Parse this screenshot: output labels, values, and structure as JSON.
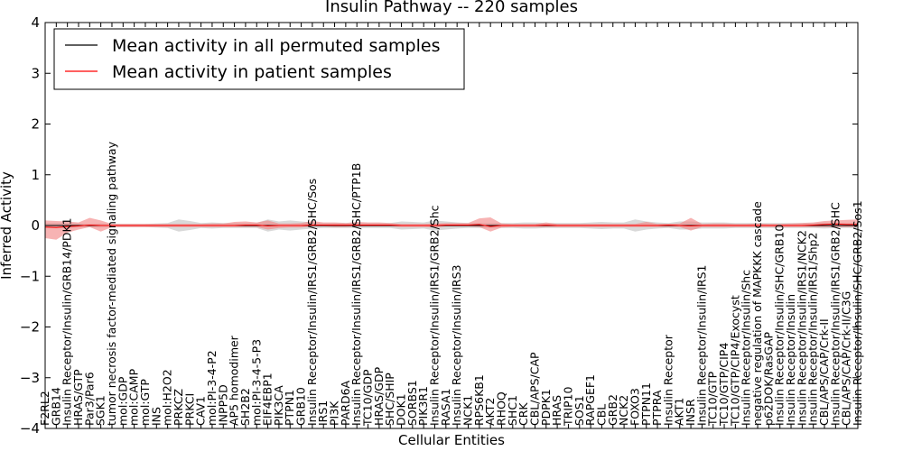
{
  "chart_data": {
    "type": "line",
    "title": "Insulin Pathway -- 220 samples",
    "xlabel": "Cellular Entities",
    "ylabel": "Inferred Activity",
    "ylim": [
      -4,
      4
    ],
    "yticks": [
      "4",
      "3",
      "2",
      "1",
      "0",
      "−1",
      "−2",
      "−3",
      "−4"
    ],
    "ytick_values": [
      4,
      3,
      2,
      1,
      0,
      -1,
      -2,
      -3,
      -4
    ],
    "grid": false,
    "legend_position": "top-left",
    "categories": [
      "F2RL2",
      "GRB14",
      "Insulin Receptor/Insulin/GRB14/PDK1",
      "HRAS/GTP",
      "Par3/Par6",
      "SGK1",
      "tumor necrosis factor-mediated signaling pathway",
      "mol:GDP",
      "mol:CAMP",
      "mol:GTP",
      "INS",
      "mol:H2O2",
      "PRKCZ",
      "PRKCI",
      "CAV1",
      "mol:PI-3-4-P2",
      "INPP5D",
      "AP5 homodimer",
      "SH2B2",
      "mol:PI-3-4-5-P3",
      "EIF4EBP1",
      "PIK3CA",
      "PTPN1",
      "GRB10",
      "Insulin Receptor/Insulin/IRS1/GRB2/SHC/Sos",
      "IRS1",
      "PI3K",
      "PARD6A",
      "Insulin Receptor/Insulin/IRS1/GRB2/SHC/PTP1B",
      "TC10/GDP",
      "HRAS/GDP",
      "SHC/SHIP",
      "DOK1",
      "SORBS1",
      "PIK3R1",
      "Insulin Receptor/Insulin/IRS1/GRB2/Shc",
      "RASA1",
      "Insulin Receptor/Insulin/IRS3",
      "NCK1",
      "RPS6KB1",
      "AKT2",
      "RHOQ",
      "SHC1",
      "CRK",
      "CBL/APS/CAP",
      "PDPK1",
      "HRAS",
      "TRIP10",
      "SOS1",
      "RAPGEF1",
      "CBL",
      "GRB2",
      "NCK2",
      "FOXO3",
      "PTPN11",
      "PTPRA",
      "Insulin Receptor",
      "AKT1",
      "INSR",
      "Insulin Receptor/Insulin/IRS1",
      "TC10/GTP",
      "TC10/GTP/CIP4",
      "TC10/GTP/CIP4/Exocyst",
      "Insulin Receptor/Insulin/Shc",
      "negative regulation of MAPKKK cascade",
      "p62DOK/RasGAP",
      "Insulin Receptor/Insulin/SHC/GRB10",
      "Insulin Receptor/Insulin",
      "Insulin Receptor/Insulin/IRS1/NCK2",
      "Insulin Receptor/Insulin/IRS1/Shp2",
      "CBL/APS/CAP/Crk-II",
      "Insulin Receptor/Insulin/IRS1/GRB2/SHC",
      "CBL/APS/CAP/Crk-II/C3G",
      "Insulin Receptor/Insulin/SHC/GRB2/Sos1"
    ],
    "series": [
      {
        "name": "Mean activity in all permuted samples",
        "color": "#000000",
        "band_color": "#aaaaaa",
        "values": [
          0,
          0,
          0,
          0,
          0,
          0,
          0,
          0,
          0,
          0,
          0,
          0,
          0,
          0,
          0,
          0,
          0,
          0,
          0,
          0,
          0,
          0,
          0,
          0,
          0,
          0,
          0,
          0,
          0,
          0,
          0,
          0,
          0,
          0,
          0,
          0,
          0,
          0,
          0,
          0,
          0,
          0,
          0,
          0,
          0,
          0,
          0,
          0,
          0,
          0,
          0,
          0,
          0,
          0,
          0,
          0,
          0,
          0,
          0,
          0,
          0,
          0,
          0,
          0,
          0,
          0,
          0,
          0,
          0,
          0,
          0,
          0,
          0,
          0
        ],
        "band_lower": [
          -0.05,
          -0.05,
          -0.05,
          -0.04,
          -0.03,
          -0.04,
          -0.03,
          -0.03,
          -0.03,
          -0.03,
          -0.04,
          -0.05,
          -0.12,
          -0.09,
          -0.05,
          -0.06,
          -0.05,
          -0.05,
          -0.05,
          -0.05,
          -0.12,
          -0.08,
          -0.1,
          -0.08,
          -0.06,
          -0.05,
          -0.05,
          -0.05,
          -0.05,
          -0.05,
          -0.05,
          -0.05,
          -0.08,
          -0.07,
          -0.06,
          -0.1,
          -0.08,
          -0.06,
          -0.05,
          -0.05,
          -0.05,
          -0.05,
          -0.05,
          -0.06,
          -0.06,
          -0.05,
          -0.05,
          -0.05,
          -0.05,
          -0.06,
          -0.07,
          -0.06,
          -0.06,
          -0.12,
          -0.08,
          -0.06,
          -0.05,
          -0.08,
          -0.08,
          -0.06,
          -0.06,
          -0.06,
          -0.05,
          -0.05,
          -0.05,
          -0.05,
          -0.05,
          -0.05,
          -0.05,
          -0.05,
          -0.06,
          -0.05,
          -0.05,
          -0.05
        ],
        "band_upper": [
          0.05,
          0.05,
          0.05,
          0.04,
          0.03,
          0.04,
          0.03,
          0.03,
          0.03,
          0.03,
          0.04,
          0.05,
          0.12,
          0.09,
          0.05,
          0.06,
          0.05,
          0.05,
          0.05,
          0.05,
          0.12,
          0.08,
          0.1,
          0.08,
          0.06,
          0.05,
          0.05,
          0.05,
          0.05,
          0.05,
          0.05,
          0.05,
          0.08,
          0.07,
          0.06,
          0.1,
          0.08,
          0.06,
          0.05,
          0.05,
          0.05,
          0.05,
          0.05,
          0.06,
          0.06,
          0.05,
          0.05,
          0.05,
          0.05,
          0.06,
          0.07,
          0.06,
          0.06,
          0.12,
          0.08,
          0.06,
          0.05,
          0.08,
          0.08,
          0.06,
          0.06,
          0.06,
          0.05,
          0.05,
          0.05,
          0.05,
          0.05,
          0.05,
          0.05,
          0.05,
          0.06,
          0.05,
          0.05,
          0.05
        ]
      },
      {
        "name": "Mean activity in patient samples",
        "color": "#ff0000",
        "band_color": "#f28080",
        "values": [
          -0.03,
          -0.04,
          -0.02,
          -0.01,
          0.01,
          0.0,
          0.0,
          0.0,
          0.0,
          0.0,
          0.0,
          0.0,
          0.0,
          0.0,
          0.0,
          0.0,
          0.0,
          0.0,
          0.01,
          0.01,
          -0.01,
          0.0,
          0.0,
          0.0,
          0.01,
          0.01,
          0.01,
          0.01,
          0.01,
          0.01,
          0.01,
          0.01,
          0.0,
          0.0,
          0.0,
          0.0,
          0.01,
          0.01,
          0.01,
          0.02,
          -0.02,
          0.0,
          0.0,
          0.0,
          0.0,
          0.01,
          0.0,
          0.0,
          0.0,
          0.0,
          0.0,
          0.0,
          0.0,
          0.0,
          0.0,
          0.0,
          0.01,
          0.0,
          -0.01,
          0.0,
          0.0,
          0.0,
          0.0,
          0.0,
          0.0,
          0.0,
          0.0,
          0.0,
          0.0,
          0.01,
          0.02,
          0.03,
          0.02,
          0.02
        ],
        "band_lower": [
          -0.25,
          -0.28,
          -0.14,
          -0.08,
          -0.03,
          -0.12,
          -0.03,
          -0.03,
          -0.03,
          -0.03,
          -0.03,
          -0.03,
          -0.03,
          -0.03,
          -0.03,
          -0.03,
          -0.03,
          -0.03,
          -0.03,
          -0.03,
          -0.08,
          -0.05,
          -0.04,
          -0.04,
          -0.02,
          -0.02,
          -0.03,
          -0.03,
          -0.02,
          -0.02,
          -0.02,
          -0.02,
          -0.03,
          -0.03,
          -0.03,
          -0.04,
          -0.02,
          -0.02,
          -0.02,
          -0.03,
          -0.12,
          -0.04,
          -0.03,
          -0.03,
          -0.03,
          -0.03,
          -0.03,
          -0.03,
          -0.03,
          -0.03,
          -0.03,
          -0.03,
          -0.03,
          -0.03,
          -0.03,
          -0.03,
          -0.03,
          -0.03,
          -0.1,
          -0.03,
          -0.03,
          -0.03,
          -0.03,
          -0.03,
          -0.03,
          -0.03,
          -0.03,
          -0.03,
          -0.03,
          -0.03,
          -0.03,
          -0.03,
          -0.03,
          -0.03
        ],
        "band_upper": [
          0.1,
          0.09,
          0.08,
          0.06,
          0.15,
          0.1,
          0.03,
          0.03,
          0.03,
          0.03,
          0.03,
          0.03,
          0.03,
          0.03,
          0.03,
          0.04,
          0.04,
          0.07,
          0.08,
          0.06,
          0.1,
          0.04,
          0.04,
          0.05,
          0.09,
          0.06,
          0.06,
          0.05,
          0.07,
          0.06,
          0.06,
          0.05,
          0.03,
          0.03,
          0.03,
          0.04,
          0.05,
          0.05,
          0.05,
          0.14,
          0.16,
          0.04,
          0.03,
          0.03,
          0.03,
          0.06,
          0.03,
          0.03,
          0.03,
          0.03,
          0.03,
          0.03,
          0.03,
          0.03,
          0.07,
          0.03,
          0.03,
          0.04,
          0.15,
          0.03,
          0.04,
          0.04,
          0.03,
          0.03,
          0.04,
          0.03,
          0.03,
          0.04,
          0.05,
          0.06,
          0.09,
          0.1,
          0.11,
          0.12
        ]
      }
    ]
  }
}
